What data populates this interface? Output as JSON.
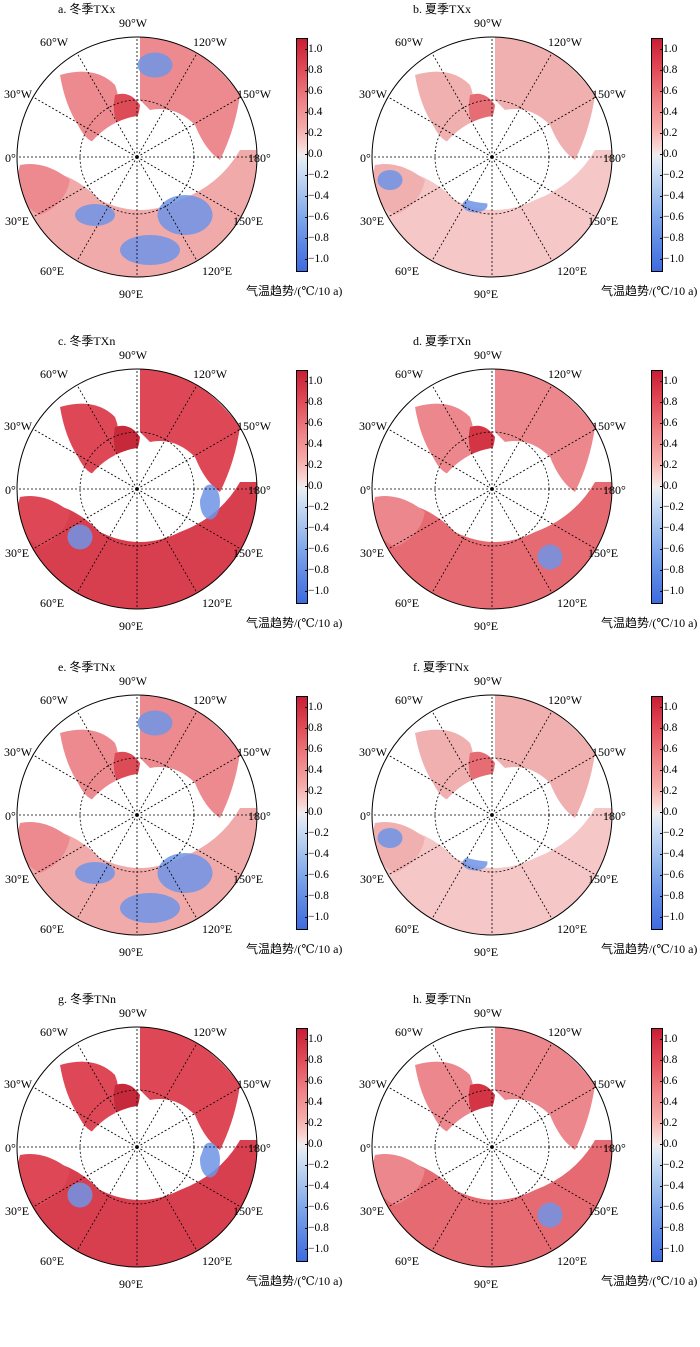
{
  "colorbar": {
    "ticks": [
      "1.0",
      "0.8",
      "0.6",
      "0.4",
      "0.2",
      "0.0",
      "−0.2",
      "−0.4",
      "−0.6",
      "−0.8",
      "−1.0"
    ],
    "title": "气温趋势/(℃/10 a)",
    "colors": {
      "max": "#c81e35",
      "mid": "#f0eeee",
      "min": "#3e6be0"
    }
  },
  "longitude_labels": {
    "w90": "90°W",
    "w120": "120°W",
    "w60": "60°W",
    "w150": "150°W",
    "w30": "30°W",
    "zero": "0°",
    "e180": "180°",
    "e30": "30°E",
    "e150": "150°E",
    "e60": "60°E",
    "e120": "120°E",
    "e90": "90°E"
  },
  "panels": [
    {
      "title": "a. 冬季TXx",
      "pattern": "mixed_blue_east"
    },
    {
      "title": "b. 夏季TXx",
      "pattern": "warm_light"
    },
    {
      "title": "c. 冬季TXn",
      "pattern": "strong_warm"
    },
    {
      "title": "d. 夏季TXn",
      "pattern": "warm_band"
    },
    {
      "title": "e. 冬季TNx",
      "pattern": "mixed_blue_east"
    },
    {
      "title": "f. 夏季TNx",
      "pattern": "warm_light"
    },
    {
      "title": "g. 冬季TNn",
      "pattern": "strong_warm"
    },
    {
      "title": "h. 夏季TNn",
      "pattern": "warm_band"
    }
  ]
}
